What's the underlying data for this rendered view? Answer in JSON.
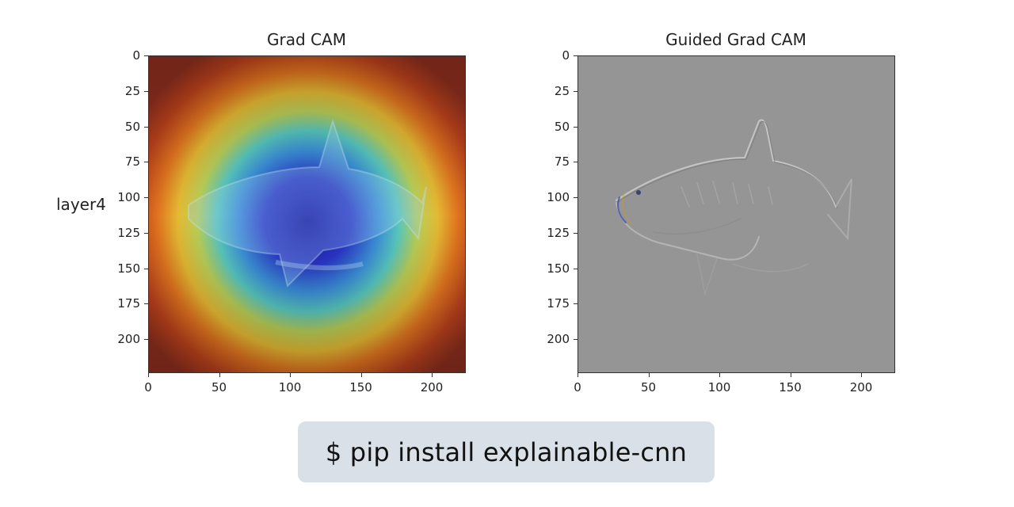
{
  "figure": {
    "row_label": "layer4",
    "panels": [
      {
        "title": "Grad CAM",
        "xticks": [
          "0",
          "50",
          "100",
          "150",
          "200"
        ],
        "yticks": [
          "0",
          "25",
          "50",
          "75",
          "100",
          "125",
          "150",
          "175",
          "200"
        ]
      },
      {
        "title": "Guided Grad CAM",
        "xticks": [
          "0",
          "50",
          "100",
          "150",
          "200"
        ],
        "yticks": [
          "0",
          "25",
          "50",
          "75",
          "100",
          "125",
          "150",
          "175",
          "200"
        ]
      }
    ]
  },
  "chart_data": [
    {
      "type": "heatmap",
      "title": "Grad CAM",
      "xlim": [
        0,
        224
      ],
      "ylim": [
        224,
        0
      ],
      "xticks": [
        0,
        50,
        100,
        150,
        200
      ],
      "yticks": [
        0,
        25,
        50,
        75,
        100,
        125,
        150,
        175,
        200
      ],
      "colormap": "jet (inverted overlay on shark image)",
      "row_label": "layer4"
    },
    {
      "type": "heatmap",
      "title": "Guided Grad CAM",
      "xlim": [
        0,
        224
      ],
      "ylim": [
        224,
        0
      ],
      "xticks": [
        0,
        50,
        100,
        150,
        200
      ],
      "yticks": [
        0,
        25,
        50,
        75,
        100,
        125,
        150,
        175,
        200
      ],
      "colormap": "gray"
    }
  ],
  "command": {
    "text": "$ pip install explainable-cnn"
  },
  "colors": {
    "command_bg": "#d9e0e8",
    "guided_bg": "#959595",
    "heat_outer": "#8e2f1f",
    "heat_core": "#1a1aa8"
  }
}
